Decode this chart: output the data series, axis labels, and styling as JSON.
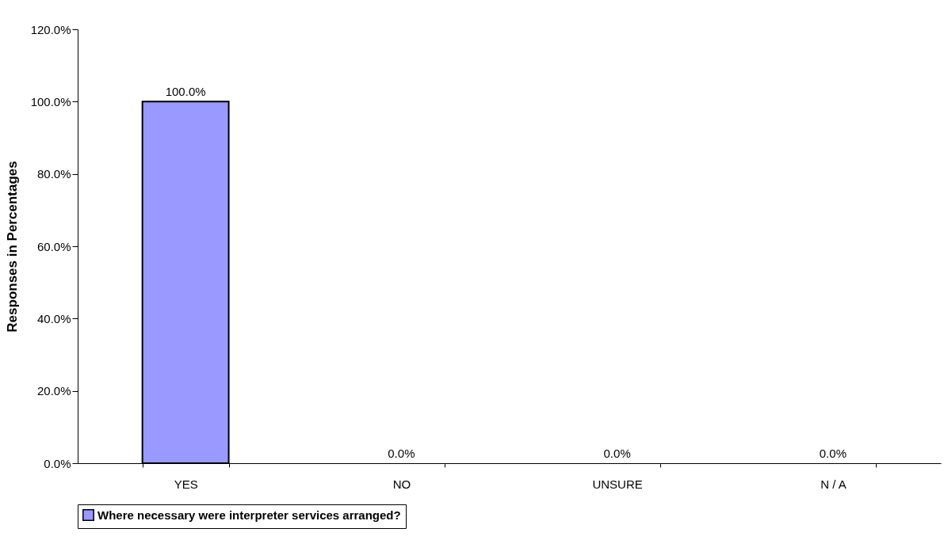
{
  "chart_data": {
    "type": "bar",
    "ylabel": "Responses in Percentages",
    "categories": [
      "YES",
      "NO",
      "UNSURE",
      "N / A"
    ],
    "series": [
      {
        "name": "Where necessary were interpreter services arranged?",
        "color": "#9999ff",
        "values": [
          100,
          0,
          0,
          0
        ],
        "value_labels": [
          "100.0%",
          "0.0%",
          "0.0%",
          "0.0%"
        ]
      }
    ],
    "ylim": [
      0,
      120
    ],
    "yticks": [
      {
        "value": 0,
        "label": "0.0%"
      },
      {
        "value": 20,
        "label": "20.0%"
      },
      {
        "value": 40,
        "label": "40.0%"
      },
      {
        "value": 60,
        "label": "60.0%"
      },
      {
        "value": 80,
        "label": "80.0%"
      },
      {
        "value": 100,
        "label": "100.0%"
      },
      {
        "value": 120,
        "label": "120.0%"
      }
    ],
    "grid": false,
    "legend": "bottom"
  }
}
